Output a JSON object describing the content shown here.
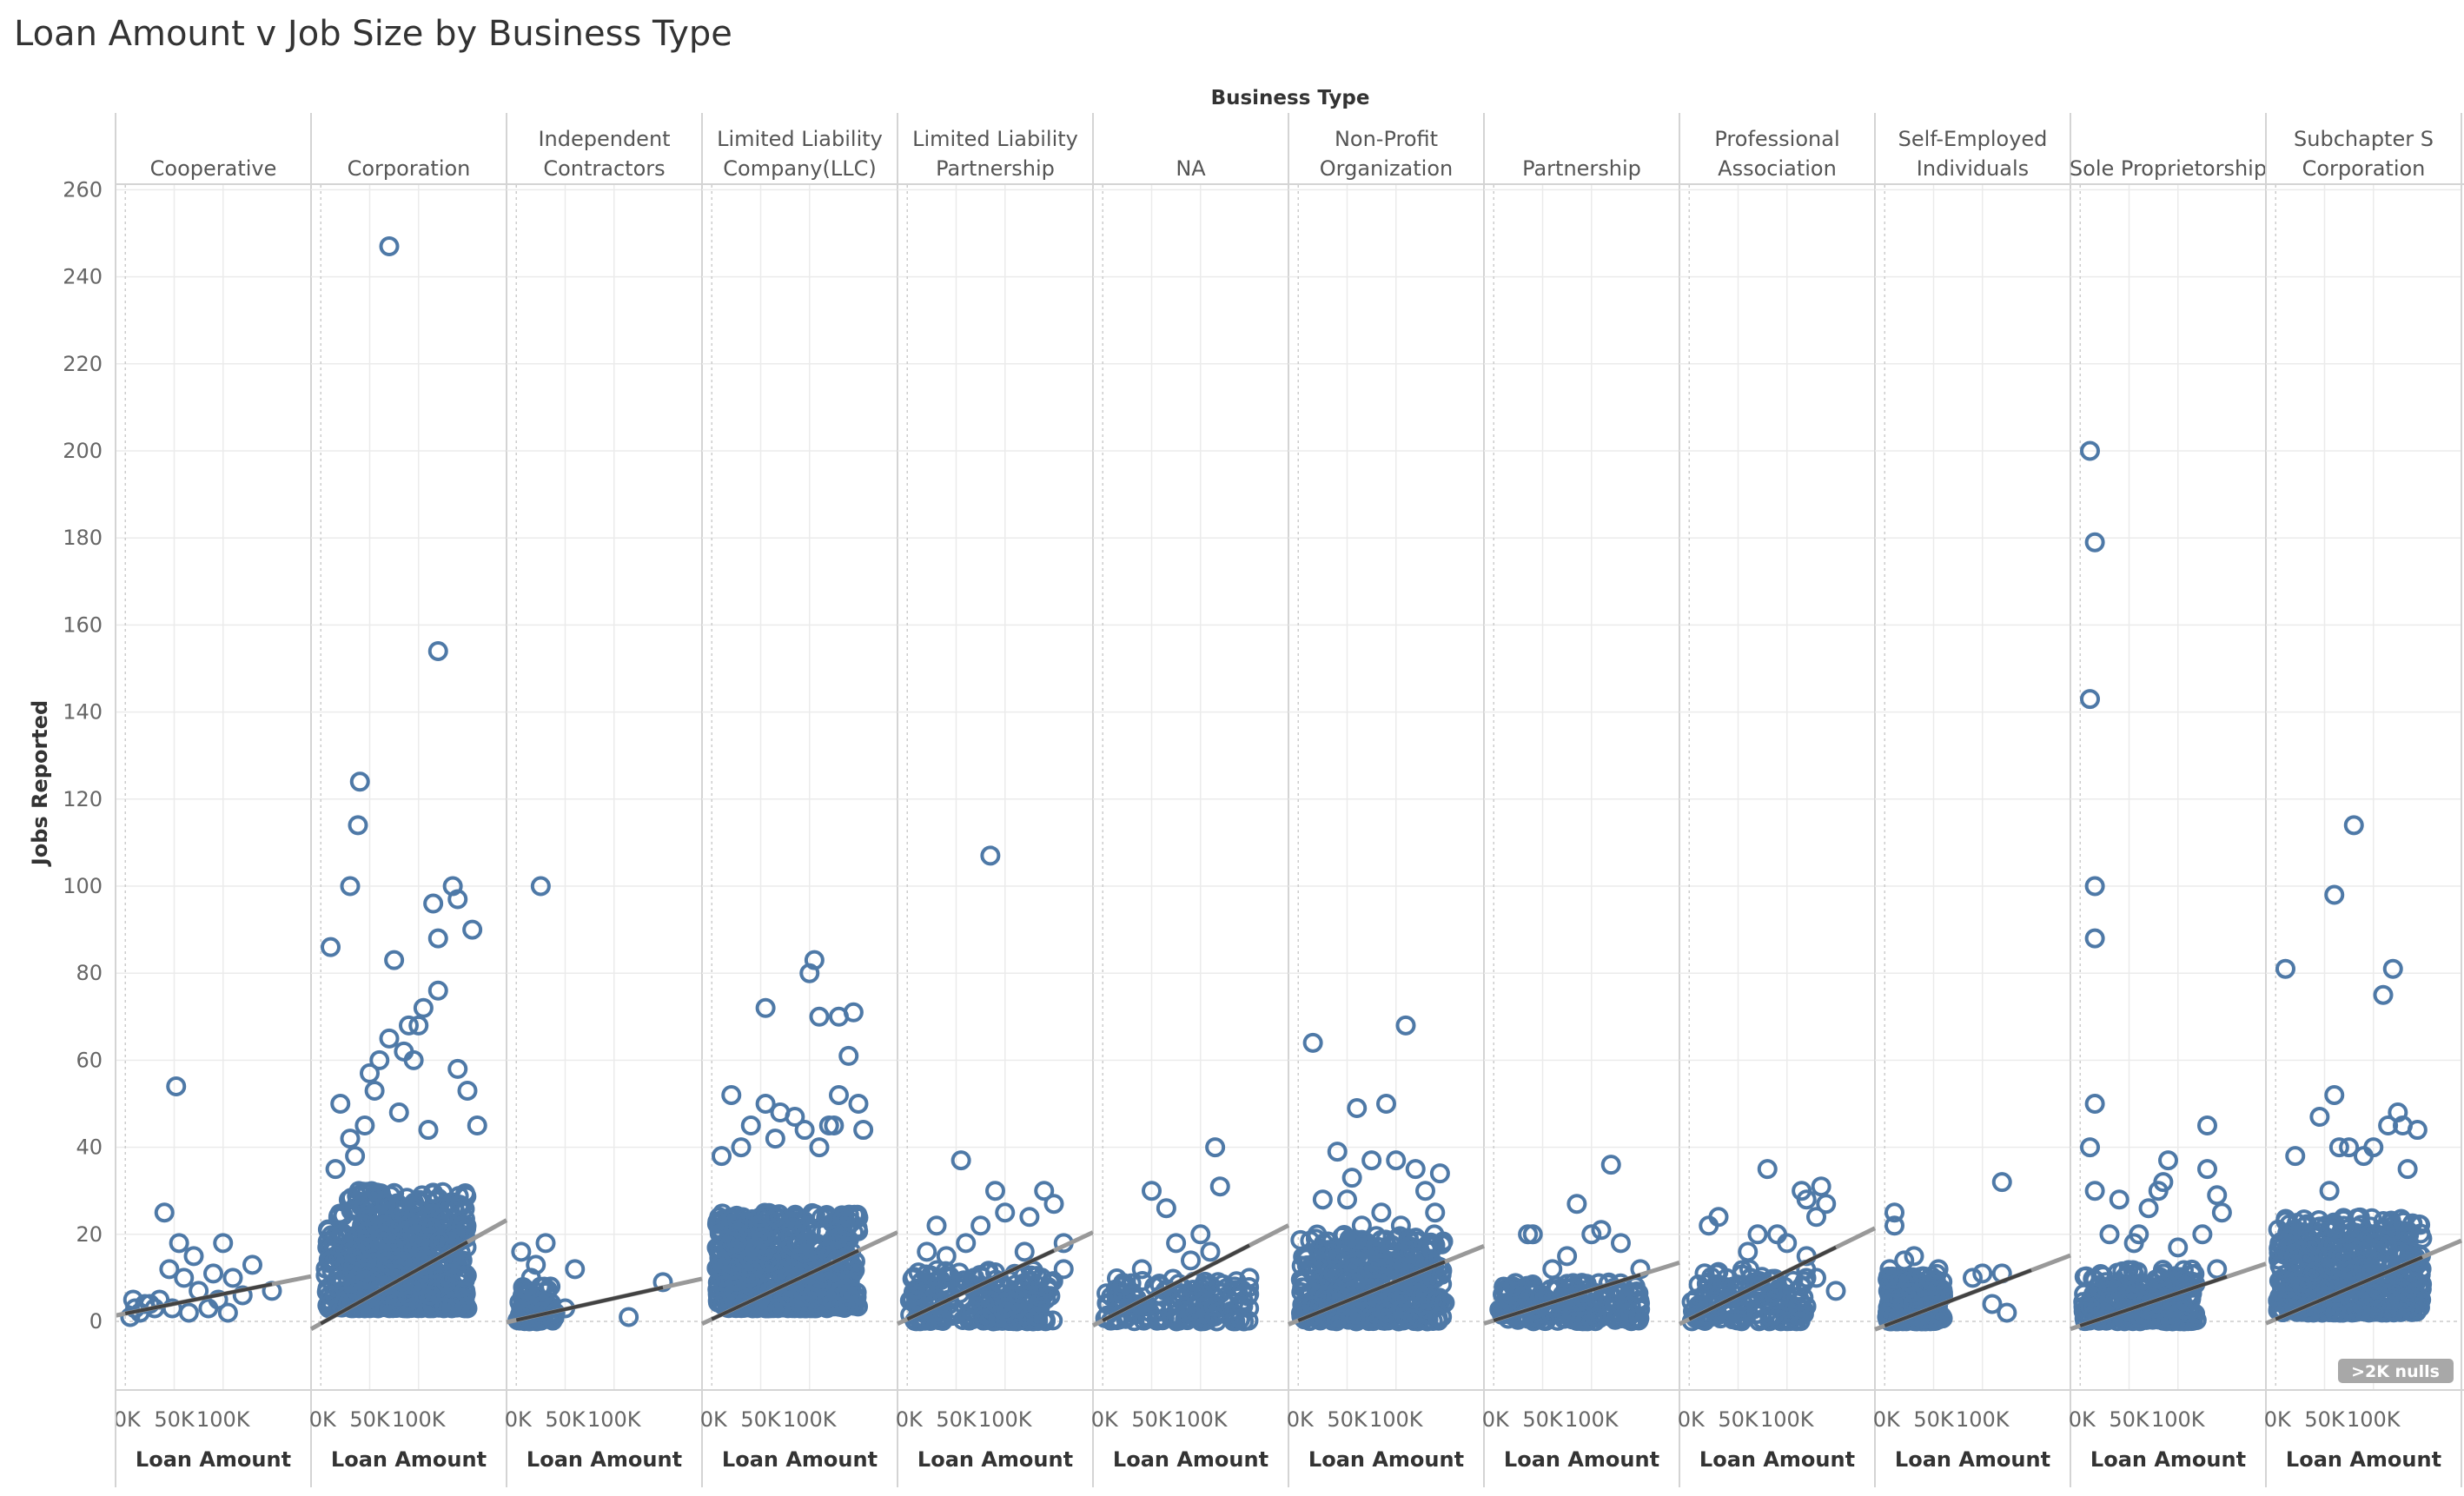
{
  "title": "Loan Amount v Job Size by Business Type",
  "nulls_indicator": ">2K nulls",
  "colors": {
    "mark": "#4e79a7",
    "trend": "#333333",
    "trend_tail": "#999999",
    "grid": "#ebebeb",
    "divider": "#d4d4d4",
    "nulls_badge": "#a8a8a8"
  },
  "chart_data": {
    "type": "scatter",
    "column_header": "Business Type",
    "xlabel": "Loan Amount",
    "ylabel": "Jobs Reported",
    "ylim": [
      -15,
      265
    ],
    "yticks": [
      0,
      20,
      40,
      60,
      80,
      100,
      120,
      140,
      160,
      180,
      200,
      220,
      240,
      260
    ],
    "xlim": [
      -10000,
      190000
    ],
    "xticks": [
      0,
      50000,
      100000
    ],
    "xtick_labels": [
      "0K",
      "50K",
      "100K"
    ],
    "trend_line": true,
    "mark_shape": "open-circle",
    "grid": true,
    "panes": [
      {
        "name": [
          "Cooperative"
        ],
        "trend": [
          1.8,
          4.5e-05
        ],
        "points": [
          [
            52000,
            54
          ],
          [
            40000,
            25
          ],
          [
            55000,
            18
          ],
          [
            100000,
            18
          ],
          [
            70000,
            15
          ],
          [
            130000,
            13
          ],
          [
            90000,
            11
          ],
          [
            110000,
            10
          ],
          [
            60000,
            10
          ],
          [
            45000,
            12
          ],
          [
            150000,
            7
          ],
          [
            120000,
            6
          ],
          [
            75000,
            7
          ],
          [
            95000,
            5
          ],
          [
            35000,
            5
          ],
          [
            20000,
            4
          ],
          [
            30000,
            3
          ],
          [
            10000,
            3
          ],
          [
            15000,
            2
          ],
          [
            25000,
            4
          ],
          [
            5000,
            1
          ],
          [
            48000,
            3
          ],
          [
            65000,
            2
          ],
          [
            85000,
            3
          ],
          [
            105000,
            2
          ],
          [
            8000,
            5
          ]
        ]
      },
      {
        "name": [
          "Corporation"
        ],
        "trend": [
          -0.5,
          0.000125
        ],
        "dense": [
          [
            5000,
            150000,
            3,
            30,
            650,
            4
          ]
        ],
        "points": [
          [
            70000,
            247
          ],
          [
            120000,
            154
          ],
          [
            40000,
            124
          ],
          [
            38000,
            114
          ],
          [
            10000,
            86
          ],
          [
            30000,
            100
          ],
          [
            135000,
            100
          ],
          [
            115000,
            96
          ],
          [
            140000,
            97
          ],
          [
            155000,
            90
          ],
          [
            120000,
            88
          ],
          [
            75000,
            83
          ],
          [
            120000,
            76
          ],
          [
            105000,
            72
          ],
          [
            90000,
            68
          ],
          [
            100000,
            68
          ],
          [
            70000,
            65
          ],
          [
            85000,
            62
          ],
          [
            95000,
            60
          ],
          [
            60000,
            60
          ],
          [
            50000,
            57
          ],
          [
            55000,
            53
          ],
          [
            20000,
            50
          ],
          [
            150000,
            53
          ],
          [
            160000,
            45
          ],
          [
            140000,
            58
          ],
          [
            45000,
            45
          ],
          [
            80000,
            48
          ],
          [
            35000,
            38
          ],
          [
            30000,
            42
          ],
          [
            110000,
            44
          ],
          [
            15000,
            35
          ]
        ]
      },
      {
        "name": [
          "Independent",
          "Contractors"
        ],
        "trend": [
          0.3,
          5e-05
        ],
        "dense": [
          [
            1000,
            40000,
            0,
            8,
            70,
            1
          ]
        ],
        "points": [
          [
            25000,
            100
          ],
          [
            30000,
            18
          ],
          [
            5000,
            16
          ],
          [
            20000,
            13
          ],
          [
            60000,
            12
          ],
          [
            150000,
            9
          ],
          [
            15000,
            10
          ],
          [
            35000,
            8
          ],
          [
            10000,
            6
          ],
          [
            115000,
            1
          ],
          [
            40000,
            2
          ],
          [
            50000,
            3
          ]
        ]
      },
      {
        "name": [
          "Limited  Liability",
          "Company(LLC)"
        ],
        "trend": [
          0.5,
          0.000105
        ],
        "dense": [
          [
            5000,
            150000,
            3,
            25,
            650,
            4
          ]
        ],
        "points": [
          [
            105000,
            83
          ],
          [
            100000,
            80
          ],
          [
            55000,
            72
          ],
          [
            110000,
            70
          ],
          [
            130000,
            70
          ],
          [
            145000,
            71
          ],
          [
            140000,
            61
          ],
          [
            20000,
            52
          ],
          [
            150000,
            50
          ],
          [
            130000,
            52
          ],
          [
            55000,
            50
          ],
          [
            70000,
            48
          ],
          [
            85000,
            47
          ],
          [
            40000,
            45
          ],
          [
            120000,
            45
          ],
          [
            155000,
            44
          ],
          [
            10000,
            38
          ],
          [
            30000,
            40
          ],
          [
            95000,
            44
          ],
          [
            110000,
            40
          ],
          [
            65000,
            42
          ],
          [
            125000,
            45
          ]
        ]
      },
      {
        "name": [
          "Limited Liability",
          "Partnership"
        ],
        "trend": [
          0.5,
          0.000105
        ],
        "dense": [
          [
            2000,
            150000,
            0,
            12,
            220,
            3
          ]
        ],
        "points": [
          [
            85000,
            107
          ],
          [
            55000,
            37
          ],
          [
            90000,
            30
          ],
          [
            140000,
            30
          ],
          [
            150000,
            27
          ],
          [
            100000,
            25
          ],
          [
            30000,
            22
          ],
          [
            125000,
            24
          ],
          [
            75000,
            22
          ],
          [
            20000,
            16
          ],
          [
            160000,
            18
          ],
          [
            160000,
            12
          ],
          [
            120000,
            16
          ],
          [
            60000,
            18
          ],
          [
            40000,
            15
          ]
        ]
      },
      {
        "name": [
          "NA"
        ],
        "trend": [
          0.2,
          0.000115
        ],
        "dense": [
          [
            2000,
            150000,
            0,
            10,
            150,
            2
          ]
        ],
        "points": [
          [
            115000,
            40
          ],
          [
            120000,
            31
          ],
          [
            50000,
            30
          ],
          [
            65000,
            26
          ],
          [
            100000,
            20
          ],
          [
            75000,
            18
          ],
          [
            110000,
            16
          ],
          [
            150000,
            10
          ],
          [
            135000,
            8
          ],
          [
            90000,
            14
          ],
          [
            40000,
            12
          ],
          [
            20000,
            8
          ],
          [
            30000,
            6
          ]
        ]
      },
      {
        "name": [
          "Non-Profit",
          "Organization"
        ],
        "trend": [
          0.2,
          9e-05
        ],
        "dense": [
          [
            2000,
            150000,
            0,
            20,
            450,
            3
          ]
        ],
        "points": [
          [
            15000,
            64
          ],
          [
            110000,
            68
          ],
          [
            90000,
            50
          ],
          [
            60000,
            49
          ],
          [
            40000,
            39
          ],
          [
            120000,
            35
          ],
          [
            145000,
            34
          ],
          [
            100000,
            37
          ],
          [
            75000,
            37
          ],
          [
            55000,
            33
          ],
          [
            25000,
            28
          ],
          [
            130000,
            30
          ],
          [
            50000,
            28
          ],
          [
            85000,
            25
          ],
          [
            140000,
            25
          ],
          [
            65000,
            22
          ],
          [
            105000,
            22
          ]
        ]
      },
      {
        "name": [
          "Partnership"
        ],
        "trend": [
          0.2,
          7e-05
        ],
        "dense": [
          [
            2000,
            150000,
            0,
            9,
            200,
            2
          ]
        ],
        "points": [
          [
            120000,
            36
          ],
          [
            85000,
            27
          ],
          [
            110000,
            21
          ],
          [
            100000,
            20
          ],
          [
            40000,
            20
          ],
          [
            35000,
            20
          ],
          [
            130000,
            18
          ],
          [
            75000,
            15
          ],
          [
            150000,
            12
          ],
          [
            60000,
            12
          ],
          [
            145000,
            8
          ],
          [
            110000,
            5
          ],
          [
            105000,
            1
          ],
          [
            20000,
            8
          ]
        ]
      },
      {
        "name": [
          "Professional",
          "Association"
        ],
        "trend": [
          0.5,
          0.00011
        ],
        "dense": [
          [
            2000,
            120000,
            0,
            12,
            150,
            3
          ]
        ],
        "points": [
          [
            80000,
            35
          ],
          [
            135000,
            31
          ],
          [
            115000,
            30
          ],
          [
            130000,
            24
          ],
          [
            120000,
            28
          ],
          [
            140000,
            27
          ],
          [
            30000,
            24
          ],
          [
            20000,
            22
          ],
          [
            70000,
            20
          ],
          [
            90000,
            20
          ],
          [
            100000,
            18
          ],
          [
            120000,
            15
          ],
          [
            60000,
            16
          ],
          [
            130000,
            10
          ],
          [
            115000,
            8
          ],
          [
            45000,
            8
          ],
          [
            150000,
            7
          ]
        ]
      },
      {
        "name": [
          "Self-Employed",
          "Individuals"
        ],
        "trend": [
          -1,
          8.5e-05
        ],
        "dense": [
          [
            2000,
            60000,
            0,
            11,
            260,
            1
          ]
        ],
        "points": [
          [
            10000,
            25
          ],
          [
            10000,
            22
          ],
          [
            120000,
            32
          ],
          [
            30000,
            15
          ],
          [
            55000,
            12
          ],
          [
            90000,
            10
          ],
          [
            100000,
            11
          ],
          [
            120000,
            11
          ],
          [
            110000,
            4
          ],
          [
            125000,
            2
          ],
          [
            20000,
            14
          ],
          [
            5000,
            12
          ]
        ]
      },
      {
        "name": [
          "Sole Proprietorship"
        ],
        "trend": [
          -1,
          7.5e-05
        ],
        "dense": [
          [
            2000,
            120000,
            0,
            12,
            240,
            2
          ]
        ],
        "points": [
          [
            10000,
            200
          ],
          [
            15000,
            179
          ],
          [
            10000,
            143
          ],
          [
            15000,
            100
          ],
          [
            15000,
            88
          ],
          [
            15000,
            50
          ],
          [
            130000,
            45
          ],
          [
            10000,
            40
          ],
          [
            90000,
            37
          ],
          [
            130000,
            35
          ],
          [
            80000,
            30
          ],
          [
            85000,
            32
          ],
          [
            15000,
            30
          ],
          [
            40000,
            28
          ],
          [
            70000,
            26
          ],
          [
            140000,
            29
          ],
          [
            125000,
            20
          ],
          [
            145000,
            25
          ],
          [
            100000,
            17
          ],
          [
            55000,
            18
          ],
          [
            30000,
            20
          ],
          [
            60000,
            20
          ],
          [
            140000,
            12
          ]
        ]
      },
      {
        "name": [
          "Subchapter S",
          "Corporation"
        ],
        "trend": [
          0.5,
          9.5e-05
        ],
        "dense": [
          [
            2000,
            150000,
            2,
            24,
            550,
            3
          ]
        ],
        "points": [
          [
            80000,
            114
          ],
          [
            60000,
            98
          ],
          [
            10000,
            81
          ],
          [
            120000,
            81
          ],
          [
            110000,
            75
          ],
          [
            60000,
            52
          ],
          [
            45000,
            47
          ],
          [
            65000,
            40
          ],
          [
            75000,
            40
          ],
          [
            115000,
            45
          ],
          [
            125000,
            48
          ],
          [
            130000,
            45
          ],
          [
            145000,
            44
          ],
          [
            20000,
            38
          ],
          [
            100000,
            40
          ],
          [
            135000,
            35
          ],
          [
            90000,
            38
          ],
          [
            55000,
            30
          ]
        ]
      }
    ]
  }
}
